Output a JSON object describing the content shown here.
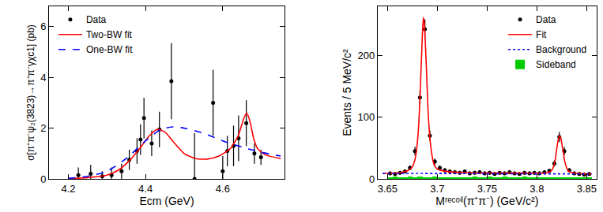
{
  "chart_data": [
    {
      "type": "scatter",
      "x_label": "Ecm (GeV)",
      "y_label": "σ[π⁺π⁻ψ₂(3823)→π⁺π⁻γχc1] (pb)",
      "xlim": [
        4.15,
        4.76
      ],
      "xticks": [
        4.2,
        4.4,
        4.6
      ],
      "ylim": [
        0,
        6.8
      ],
      "yticks": [
        0,
        2,
        4,
        6
      ],
      "grid": false,
      "legend": "top left",
      "series": [
        {
          "name": "Data",
          "type": "scatter",
          "color": "#000000",
          "marker": "circle",
          "x": [
            4.226,
            4.258,
            4.288,
            4.312,
            4.338,
            4.358,
            4.378,
            4.387,
            4.396,
            4.416,
            4.436,
            4.467,
            4.527,
            4.575,
            4.6,
            4.612,
            4.628,
            4.641,
            4.661,
            4.682,
            4.699
          ],
          "values": [
            0.15,
            0.2,
            0.1,
            0.15,
            0.3,
            0.75,
            1.1,
            1.55,
            2.4,
            1.4,
            1.95,
            3.85,
            0.0,
            3.0,
            0.3,
            1.1,
            1.3,
            1.6,
            2.2,
            1.0,
            0.85
          ],
          "errors": [
            0.3,
            0.35,
            0.2,
            0.3,
            0.3,
            0.4,
            0.5,
            0.6,
            0.8,
            0.5,
            0.7,
            1.5,
            1.8,
            1.3,
            0.6,
            0.6,
            0.8,
            0.9,
            0.9,
            0.4,
            0.3
          ]
        },
        {
          "name": "Two-BW fit",
          "type": "line",
          "color": "#ff0000",
          "line_style": "solid",
          "x": [
            4.2,
            4.25,
            4.3,
            4.33,
            4.36,
            4.39,
            4.41,
            4.43,
            4.45,
            4.47,
            4.5,
            4.53,
            4.56,
            4.59,
            4.62,
            4.64,
            4.655,
            4.662,
            4.67,
            4.68,
            4.69,
            4.71,
            4.75
          ],
          "values": [
            0,
            0.05,
            0.15,
            0.35,
            0.75,
            1.3,
            1.7,
            1.95,
            1.85,
            1.5,
            1.0,
            0.8,
            0.78,
            0.9,
            1.2,
            1.7,
            2.4,
            2.6,
            2.3,
            1.6,
            1.2,
            0.95,
            0.8
          ]
        },
        {
          "name": "One-BW fit",
          "type": "line",
          "color": "#0000ff",
          "line_style": "dashed",
          "x": [
            4.2,
            4.25,
            4.3,
            4.35,
            4.4,
            4.44,
            4.47,
            4.5,
            4.55,
            4.6,
            4.65,
            4.7,
            4.75
          ],
          "values": [
            0.02,
            0.1,
            0.3,
            0.8,
            1.5,
            1.95,
            2.05,
            2.0,
            1.8,
            1.5,
            1.25,
            1.05,
            0.9
          ]
        }
      ]
    },
    {
      "type": "scatter",
      "x_label": "Mʳᵉᶜᵒⁱˡ(π⁺π⁻) (GeV/c²)",
      "y_label": "Events / 5 MeV/c²",
      "xlim": [
        3.64,
        3.86
      ],
      "xticks": [
        3.65,
        3.7,
        3.75,
        3.8,
        3.85
      ],
      "ylim": [
        0,
        280
      ],
      "yticks": [
        0,
        100,
        200
      ],
      "grid": false,
      "legend": "top right",
      "series": [
        {
          "name": "Data",
          "type": "scatter",
          "color": "#000000",
          "marker": "circle",
          "x": [
            3.6525,
            3.6575,
            3.6625,
            3.6675,
            3.6725,
            3.6775,
            3.6825,
            3.6875,
            3.6925,
            3.6975,
            3.7025,
            3.7075,
            3.7125,
            3.7175,
            3.7225,
            3.7275,
            3.7325,
            3.7375,
            3.7425,
            3.7475,
            3.7525,
            3.7575,
            3.7625,
            3.7675,
            3.7725,
            3.7775,
            3.7825,
            3.7875,
            3.7925,
            3.7975,
            3.8025,
            3.8075,
            3.8125,
            3.8175,
            3.8225,
            3.8275,
            3.8325,
            3.8375,
            3.8425,
            3.8475,
            3.8525
          ],
          "values": [
            9,
            8,
            10,
            12,
            18,
            45,
            132,
            243,
            70,
            28,
            18,
            14,
            12,
            11,
            10,
            12,
            9,
            10,
            11,
            9,
            10,
            8,
            10,
            9,
            11,
            9,
            8,
            10,
            9,
            10,
            9,
            11,
            13,
            25,
            68,
            45,
            14,
            9,
            8,
            7,
            8
          ],
          "errors": [
            3,
            3,
            3,
            3.5,
            4,
            7,
            11.5,
            15.6,
            8.4,
            5.3,
            4.2,
            3.7,
            3.5,
            3.3,
            3.2,
            3.5,
            3,
            3.2,
            3.3,
            3,
            3.2,
            2.8,
            3.2,
            3,
            3.3,
            3,
            2.8,
            3.2,
            3,
            3.2,
            3,
            3.3,
            3.6,
            5,
            8.2,
            6.7,
            3.7,
            3,
            2.8,
            2.6,
            2.8
          ]
        },
        {
          "name": "Fit",
          "type": "line",
          "color": "#ff0000",
          "line_style": "solid",
          "x": [
            3.645,
            3.66,
            3.67,
            3.675,
            3.678,
            3.681,
            3.683,
            3.685,
            3.686,
            3.687,
            3.689,
            3.691,
            3.694,
            3.697,
            3.7,
            3.71,
            3.73,
            3.77,
            3.8,
            3.81,
            3.815,
            3.818,
            3.82,
            3.822,
            3.823,
            3.824,
            3.826,
            3.828,
            3.831,
            3.835,
            3.845,
            3.855
          ],
          "values": [
            9,
            10,
            13,
            20,
            35,
            80,
            150,
            235,
            262,
            250,
            180,
            100,
            45,
            22,
            16,
            12,
            10,
            9.5,
            9.2,
            10,
            14,
            28,
            50,
            68,
            70,
            66,
            48,
            28,
            14,
            10,
            8.5,
            8
          ]
        },
        {
          "name": "Background",
          "type": "line",
          "color": "#0000ff",
          "line_style": "dotted",
          "x": [
            3.645,
            3.7,
            3.75,
            3.8,
            3.855
          ],
          "values": [
            9,
            8.8,
            8.5,
            8.2,
            8
          ]
        },
        {
          "name": "Sideband",
          "type": "bar",
          "color": "#00cc00",
          "x": [
            3.6525,
            3.6575,
            3.6625,
            3.6675,
            3.6725,
            3.6775,
            3.6825,
            3.6875,
            3.6925,
            3.6975,
            3.7025,
            3.7075,
            3.7125,
            3.7175,
            3.7225,
            3.7275,
            3.7325,
            3.7375,
            3.7425,
            3.7475,
            3.7525,
            3.7575,
            3.7625,
            3.7675,
            3.7725,
            3.7775,
            3.7825,
            3.7875,
            3.7925,
            3.7975,
            3.8025,
            3.8075,
            3.8125,
            3.8175,
            3.8225,
            3.8275,
            3.8325,
            3.8375,
            3.8425,
            3.8475,
            3.8525
          ],
          "values": [
            3,
            4,
            3,
            3,
            4,
            3,
            4,
            3,
            3,
            4,
            3,
            3,
            2,
            2,
            2,
            3,
            3,
            4,
            3,
            3,
            4,
            3,
            3,
            4,
            3,
            3,
            3,
            4,
            3,
            3,
            2,
            2,
            2,
            2,
            2,
            2,
            2,
            2,
            2,
            2,
            2
          ]
        }
      ]
    }
  ]
}
